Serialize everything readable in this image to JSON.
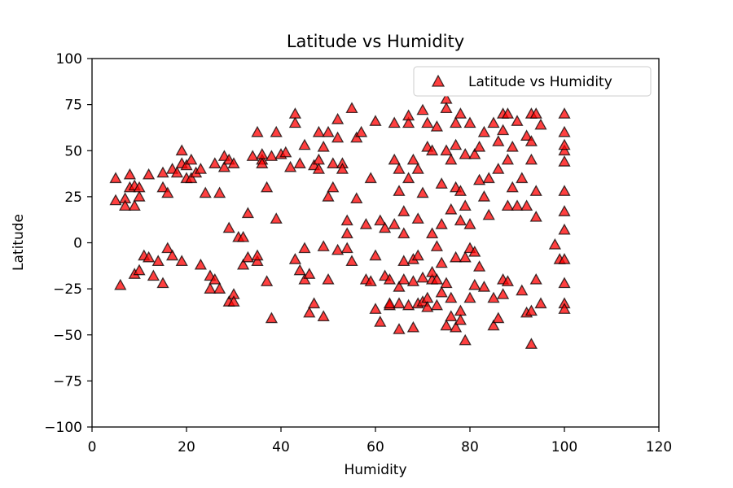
{
  "chart_data": {
    "type": "scatter",
    "title": "Latitude vs Humidity",
    "xlabel": "Humidity",
    "ylabel": "Latitude",
    "xlim": [
      0,
      120
    ],
    "ylim": [
      -100,
      100
    ],
    "xticks": [
      0,
      20,
      40,
      60,
      80,
      100,
      120
    ],
    "yticks": [
      -100,
      -75,
      -50,
      -25,
      0,
      25,
      50,
      75,
      100
    ],
    "grid": false,
    "legend_position": "top-right",
    "marker": "triangle",
    "marker_color": "#ff0000",
    "marker_edge_color": "#000000",
    "series": [
      {
        "name": "Latitude vs Humidity",
        "points": [
          [
            5,
            35
          ],
          [
            5,
            23
          ],
          [
            6,
            -23
          ],
          [
            7,
            24
          ],
          [
            7,
            20
          ],
          [
            8,
            37
          ],
          [
            8,
            30
          ],
          [
            9,
            20
          ],
          [
            9,
            31
          ],
          [
            10,
            25
          ],
          [
            10,
            30
          ],
          [
            9,
            -17
          ],
          [
            10,
            -15
          ],
          [
            11,
            -7
          ],
          [
            12,
            37
          ],
          [
            12,
            -8
          ],
          [
            13,
            -18
          ],
          [
            14,
            -10
          ],
          [
            15,
            38
          ],
          [
            15,
            30
          ],
          [
            15,
            -22
          ],
          [
            16,
            27
          ],
          [
            16,
            -3
          ],
          [
            17,
            -7
          ],
          [
            17,
            40
          ],
          [
            18,
            38
          ],
          [
            19,
            -10
          ],
          [
            19,
            50
          ],
          [
            19,
            43
          ],
          [
            20,
            42
          ],
          [
            20,
            35
          ],
          [
            21,
            45
          ],
          [
            21,
            35
          ],
          [
            22,
            38
          ],
          [
            23,
            -12
          ],
          [
            23,
            40
          ],
          [
            24,
            27
          ],
          [
            25,
            -25
          ],
          [
            25,
            -18
          ],
          [
            26,
            -20
          ],
          [
            26,
            43
          ],
          [
            27,
            -25
          ],
          [
            27,
            27
          ],
          [
            28,
            47
          ],
          [
            28,
            41
          ],
          [
            29,
            8
          ],
          [
            29,
            -32
          ],
          [
            29,
            45
          ],
          [
            30,
            -28
          ],
          [
            30,
            -32
          ],
          [
            30,
            43
          ],
          [
            31,
            3
          ],
          [
            32,
            3
          ],
          [
            32,
            -12
          ],
          [
            33,
            -8
          ],
          [
            33,
            16
          ],
          [
            34,
            47
          ],
          [
            35,
            -10
          ],
          [
            35,
            60
          ],
          [
            35,
            -7
          ],
          [
            36,
            45
          ],
          [
            36,
            43
          ],
          [
            36,
            48
          ],
          [
            37,
            -21
          ],
          [
            37,
            30
          ],
          [
            38,
            -41
          ],
          [
            38,
            47
          ],
          [
            39,
            60
          ],
          [
            39,
            13
          ],
          [
            40,
            48
          ],
          [
            41,
            49
          ],
          [
            42,
            41
          ],
          [
            43,
            65
          ],
          [
            43,
            70
          ],
          [
            43,
            -9
          ],
          [
            44,
            43
          ],
          [
            44,
            -15
          ],
          [
            45,
            53
          ],
          [
            45,
            -3
          ],
          [
            45,
            -20
          ],
          [
            46,
            -38
          ],
          [
            46,
            -17
          ],
          [
            47,
            42
          ],
          [
            47,
            -33
          ],
          [
            48,
            60
          ],
          [
            48,
            40
          ],
          [
            48,
            45
          ],
          [
            49,
            -40
          ],
          [
            49,
            52
          ],
          [
            49,
            -2
          ],
          [
            50,
            60
          ],
          [
            50,
            -20
          ],
          [
            50,
            25
          ],
          [
            51,
            30
          ],
          [
            51,
            43
          ],
          [
            52,
            57
          ],
          [
            52,
            67
          ],
          [
            52,
            -4
          ],
          [
            53,
            43
          ],
          [
            53,
            40
          ],
          [
            54,
            12
          ],
          [
            54,
            -3
          ],
          [
            54,
            5
          ],
          [
            55,
            -10
          ],
          [
            55,
            73
          ],
          [
            56,
            24
          ],
          [
            56,
            57
          ],
          [
            57,
            60
          ],
          [
            58,
            -20
          ],
          [
            58,
            10
          ],
          [
            59,
            -21
          ],
          [
            59,
            35
          ],
          [
            60,
            -7
          ],
          [
            60,
            -36
          ],
          [
            60,
            66
          ],
          [
            61,
            -43
          ],
          [
            61,
            12
          ],
          [
            62,
            -18
          ],
          [
            62,
            8
          ],
          [
            63,
            -34
          ],
          [
            63,
            -20
          ],
          [
            63,
            -33
          ],
          [
            64,
            65
          ],
          [
            64,
            45
          ],
          [
            64,
            10
          ],
          [
            65,
            -47
          ],
          [
            65,
            -24
          ],
          [
            65,
            -33
          ],
          [
            65,
            28
          ],
          [
            65,
            40
          ],
          [
            66,
            5
          ],
          [
            66,
            17
          ],
          [
            66,
            -10
          ],
          [
            66,
            -20
          ],
          [
            67,
            -34
          ],
          [
            67,
            35
          ],
          [
            67,
            65
          ],
          [
            67,
            69
          ],
          [
            68,
            45
          ],
          [
            68,
            -21
          ],
          [
            68,
            -46
          ],
          [
            68,
            -9
          ],
          [
            69,
            -33
          ],
          [
            69,
            13
          ],
          [
            69,
            -7
          ],
          [
            69,
            40
          ],
          [
            70,
            72
          ],
          [
            70,
            -19
          ],
          [
            70,
            -32
          ],
          [
            70,
            27
          ],
          [
            71,
            -30
          ],
          [
            71,
            65
          ],
          [
            71,
            -35
          ],
          [
            71,
            52
          ],
          [
            72,
            50
          ],
          [
            72,
            -20
          ],
          [
            72,
            -16
          ],
          [
            72,
            5
          ],
          [
            73,
            -20
          ],
          [
            73,
            63
          ],
          [
            73,
            -2
          ],
          [
            73,
            -34
          ],
          [
            74,
            -27
          ],
          [
            74,
            32
          ],
          [
            74,
            10
          ],
          [
            74,
            -11
          ],
          [
            75,
            -22
          ],
          [
            75,
            78
          ],
          [
            75,
            73
          ],
          [
            75,
            50
          ],
          [
            75,
            -45
          ],
          [
            76,
            -30
          ],
          [
            76,
            45
          ],
          [
            76,
            -40
          ],
          [
            76,
            18
          ],
          [
            77,
            -8
          ],
          [
            77,
            -46
          ],
          [
            77,
            65
          ],
          [
            77,
            30
          ],
          [
            77,
            53
          ],
          [
            78,
            -42
          ],
          [
            78,
            28
          ],
          [
            78,
            12
          ],
          [
            78,
            -37
          ],
          [
            78,
            70
          ],
          [
            79,
            -53
          ],
          [
            79,
            -8
          ],
          [
            79,
            48
          ],
          [
            79,
            20
          ],
          [
            80,
            -3
          ],
          [
            80,
            65
          ],
          [
            80,
            -30
          ],
          [
            80,
            10
          ],
          [
            81,
            -5
          ],
          [
            81,
            48
          ],
          [
            81,
            -23
          ],
          [
            82,
            34
          ],
          [
            82,
            -13
          ],
          [
            82,
            52
          ],
          [
            83,
            25
          ],
          [
            83,
            -24
          ],
          [
            83,
            60
          ],
          [
            84,
            15
          ],
          [
            84,
            35
          ],
          [
            85,
            -45
          ],
          [
            85,
            65
          ],
          [
            85,
            -30
          ],
          [
            86,
            -41
          ],
          [
            86,
            40
          ],
          [
            86,
            55
          ],
          [
            87,
            -28
          ],
          [
            87,
            61
          ],
          [
            87,
            70
          ],
          [
            87,
            -20
          ],
          [
            88,
            70
          ],
          [
            88,
            20
          ],
          [
            88,
            -21
          ],
          [
            88,
            45
          ],
          [
            89,
            30
          ],
          [
            89,
            52
          ],
          [
            90,
            66
          ],
          [
            90,
            20
          ],
          [
            91,
            -26
          ],
          [
            91,
            35
          ],
          [
            92,
            -38
          ],
          [
            92,
            58
          ],
          [
            92,
            20
          ],
          [
            93,
            70
          ],
          [
            93,
            -55
          ],
          [
            93,
            -37
          ],
          [
            93,
            45
          ],
          [
            93,
            55
          ],
          [
            94,
            70
          ],
          [
            94,
            -20
          ],
          [
            94,
            14
          ],
          [
            94,
            28
          ],
          [
            95,
            64
          ],
          [
            95,
            -33
          ],
          [
            98,
            -1
          ],
          [
            99,
            -9
          ],
          [
            100,
            70
          ],
          [
            100,
            60
          ],
          [
            100,
            50
          ],
          [
            100,
            44
          ],
          [
            100,
            28
          ],
          [
            100,
            17
          ],
          [
            100,
            7
          ],
          [
            100,
            -9
          ],
          [
            100,
            -22
          ],
          [
            100,
            -33
          ],
          [
            100,
            -36
          ],
          [
            100,
            53
          ]
        ]
      }
    ]
  }
}
